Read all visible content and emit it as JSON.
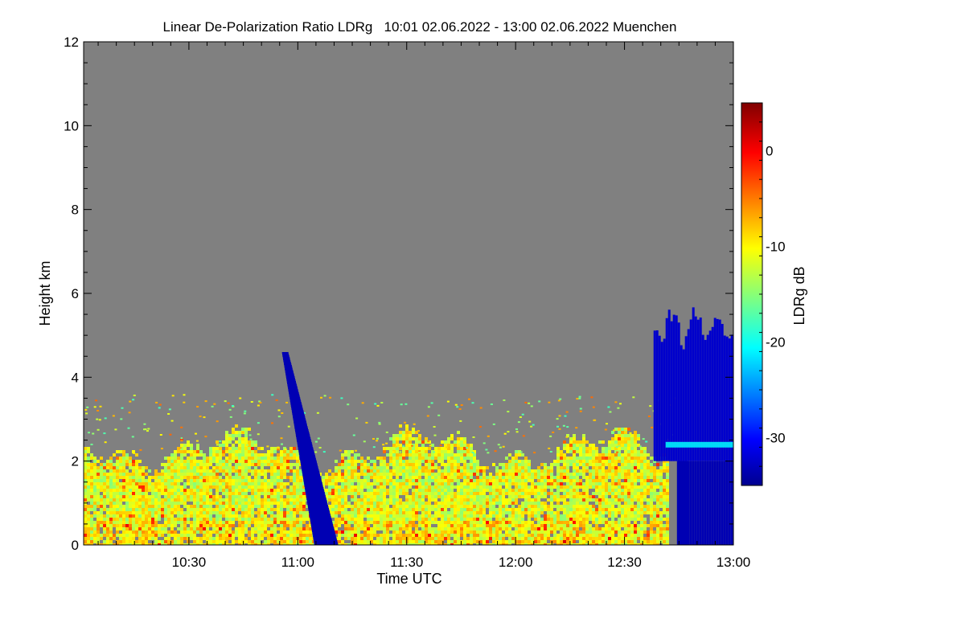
{
  "chart_data": {
    "type": "heatmap",
    "title": "Linear De-Polarization Ratio LDRg   10:01 02.06.2022 - 13:00 02.06.2022 Muenchen",
    "xlabel": "Time UTC",
    "ylabel": "Height km",
    "xrange": [
      "10:01",
      "13:00"
    ],
    "xticks": [
      "10:30",
      "11:00",
      "11:30",
      "12:00",
      "12:30",
      "13:00"
    ],
    "ylim": [
      0,
      12
    ],
    "yticks": [
      "0",
      "2",
      "4",
      "6",
      "8",
      "10",
      "12"
    ],
    "colorbar": {
      "label": "LDRg dB",
      "range": [
        -35,
        5
      ],
      "ticks": [
        "0",
        "-10",
        "-20",
        "-30"
      ],
      "colormap": "jet"
    },
    "background_color": "#808080",
    "features": [
      {
        "description": "mixed boundary-layer aerosol",
        "time_start": "10:01",
        "time_end": "12:44",
        "height_top_km": 2.3,
        "ldr_db_range": [
          -20,
          -5
        ]
      },
      {
        "description": "low-depolarization precipitation streak",
        "time_start": "10:56",
        "time_end": "11:07",
        "height_top_km": 4.6,
        "ldr_db": -33
      },
      {
        "description": "rain shower with bright melting band",
        "time_start": "12:38",
        "time_end": "13:00",
        "height_top_km": 5.5,
        "ldr_db": -32,
        "melting_layer_km": 2.4,
        "melting_layer_ldr_db": -20
      }
    ]
  }
}
